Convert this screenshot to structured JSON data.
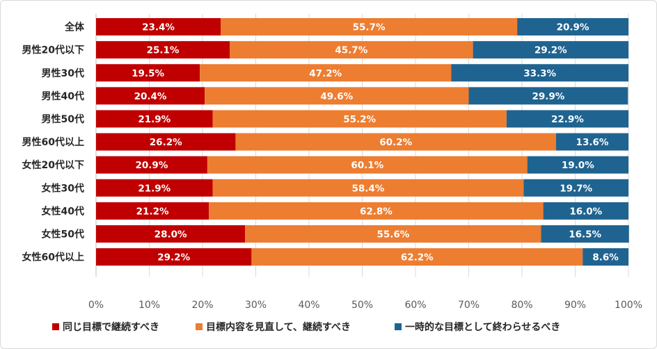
{
  "chart_data": {
    "type": "bar",
    "orientation": "horizontal",
    "stacked": true,
    "categories": [
      "全体",
      "男性20代以下",
      "男性30代",
      "男性40代",
      "男性50代",
      "男性60代以上",
      "女性20代以下",
      "女性30代",
      "女性40代",
      "女性50代",
      "女性60代以上"
    ],
    "series": [
      {
        "name": "同じ目標で継続すべき",
        "color": "#c00000",
        "values": [
          23.4,
          25.1,
          19.5,
          20.4,
          21.9,
          26.2,
          20.9,
          21.9,
          21.2,
          28.0,
          29.2
        ]
      },
      {
        "name": "目標内容を見直して、継続すべき",
        "color": "#ed7d31",
        "values": [
          55.7,
          45.7,
          47.2,
          49.6,
          55.2,
          60.2,
          60.1,
          58.4,
          62.8,
          55.6,
          62.2
        ]
      },
      {
        "name": "一時的な目標として終わらせるべき",
        "color": "#1f6391",
        "values": [
          20.9,
          29.2,
          33.3,
          29.9,
          22.9,
          13.6,
          19.0,
          19.7,
          16.0,
          16.5,
          8.6
        ]
      }
    ],
    "xlim": [
      0,
      100
    ],
    "xticks": [
      "0%",
      "10%",
      "20%",
      "30%",
      "40%",
      "50%",
      "60%",
      "70%",
      "80%",
      "90%",
      "100%"
    ],
    "grid": true,
    "legend_position": "bottom",
    "data_labels": true
  }
}
